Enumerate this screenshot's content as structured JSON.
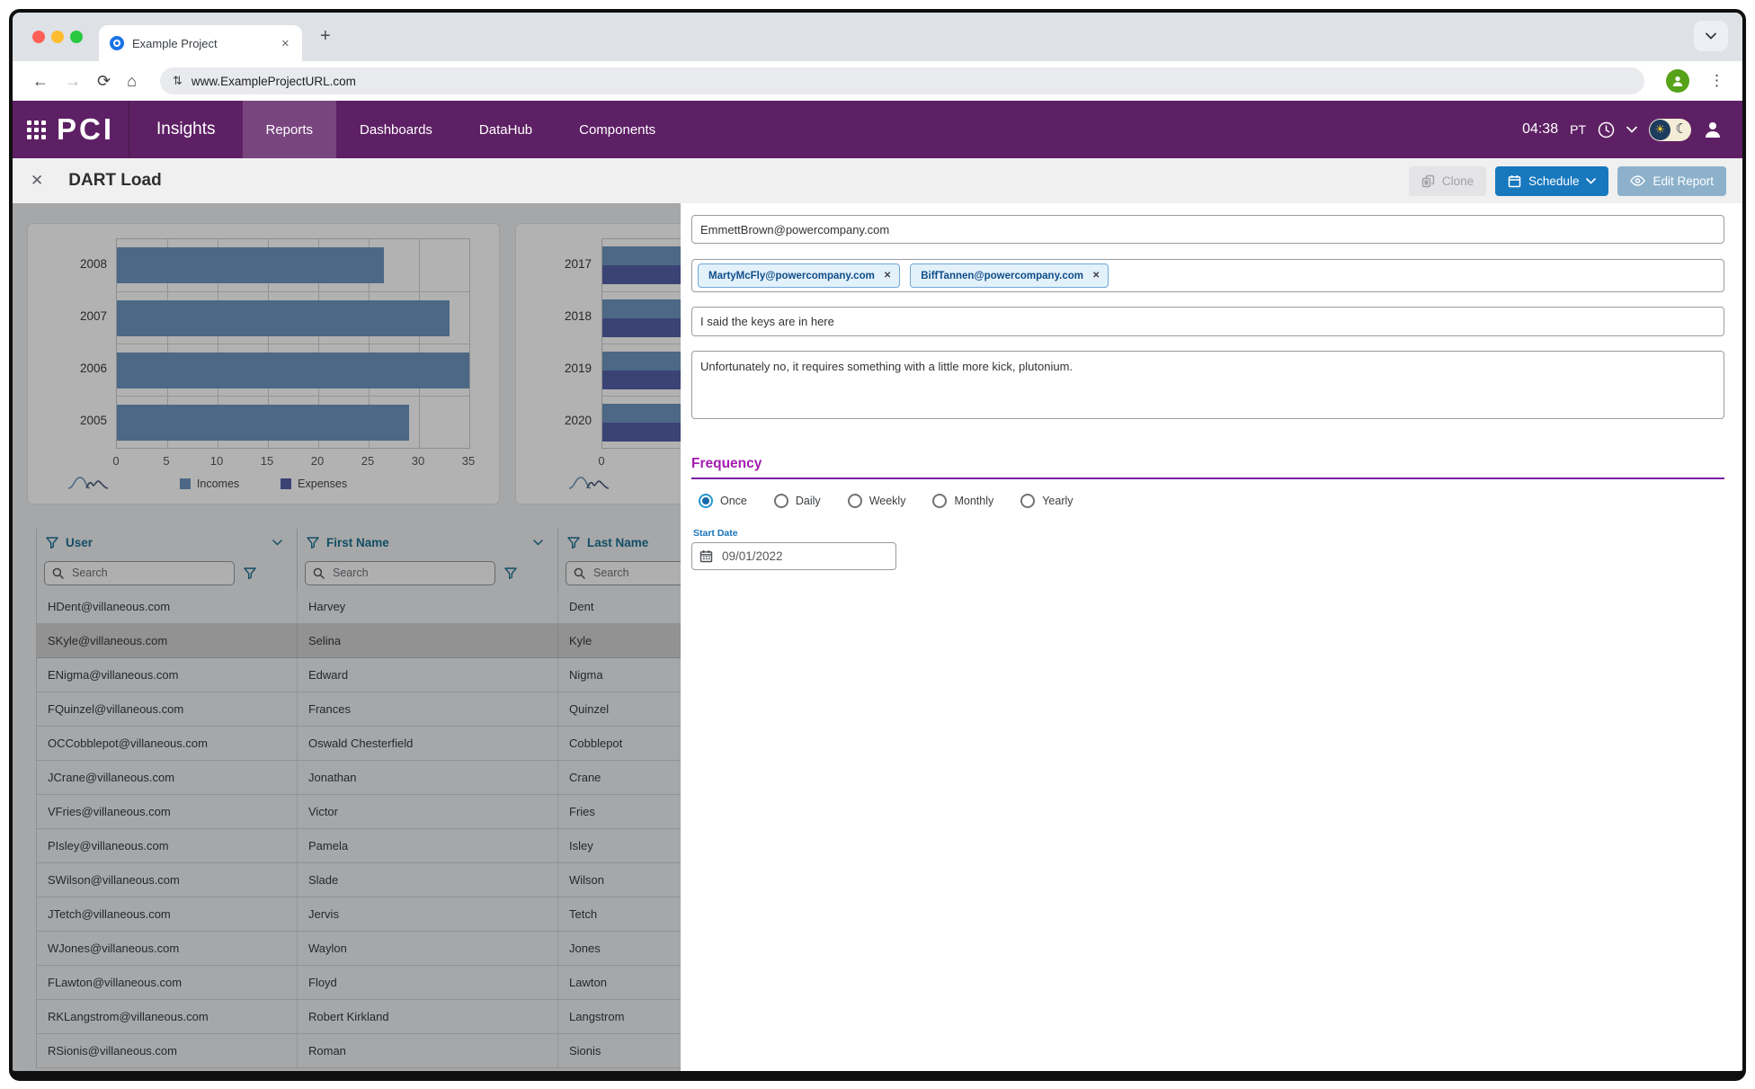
{
  "browser": {
    "tab_title": "Example Project",
    "url": "www.ExampleProjectURL.com"
  },
  "nav": {
    "brand": "PCI",
    "section": "Insights",
    "items": [
      {
        "label": "Reports",
        "active": true
      },
      {
        "label": "Dashboards",
        "active": false
      },
      {
        "label": "DataHub",
        "active": false
      },
      {
        "label": "Components",
        "active": false
      }
    ],
    "time": "04:38",
    "timezone": "PT"
  },
  "report_header": {
    "title": "DART Load",
    "buttons": {
      "clone": "Clone",
      "schedule": "Schedule",
      "edit": "Edit Report"
    }
  },
  "schedule_panel": {
    "to_value": "EmmettBrown@powercompany.com",
    "cc_chips": [
      "MartyMcFly@powercompany.com",
      "BiffTannen@powercompany.com"
    ],
    "subject_value": "I said the keys are in here",
    "message_value": "Unfortunately no, it requires something with a little more kick, plutonium.",
    "frequency": {
      "label": "Frequency",
      "options": [
        "Once",
        "Daily",
        "Weekly",
        "Monthly",
        "Yearly"
      ],
      "selected": "Once"
    },
    "start_date": {
      "label": "Start Date",
      "value": "09/01/2022"
    }
  },
  "chart_data": [
    {
      "type": "bar",
      "orientation": "horizontal",
      "categories": [
        "2008",
        "2007",
        "2006",
        "2005"
      ],
      "series": [
        {
          "name": "Incomes",
          "values": [
            26.5,
            33,
            35,
            29
          ]
        }
      ],
      "legend": [
        "Incomes",
        "Expenses"
      ],
      "colors": {
        "Incomes": "#6d96bf",
        "Expenses": "#5561a8"
      },
      "xlim": [
        0,
        35
      ],
      "xticks": [
        0,
        5,
        10,
        15,
        20,
        25,
        30,
        35
      ],
      "grid": true,
      "legend_position": "bottom"
    },
    {
      "type": "bar",
      "orientation": "horizontal",
      "categories": [
        "2017",
        "2018",
        "2019",
        "2020"
      ],
      "series": [
        {
          "name": "Incomes"
        },
        {
          "name": "Expenses"
        }
      ],
      "colors": {
        "Incomes": "#6d96bf",
        "Expenses": "#5561a8"
      },
      "xticks": [
        0
      ],
      "note": "chart partially hidden behind schedule panel; bar lengths truncated at panel edge"
    }
  ],
  "table": {
    "columns": [
      "User",
      "First Name",
      "Last Name"
    ],
    "search_placeholder": "Search",
    "selected_row_index": 1,
    "rows": [
      [
        "HDent@villaneous.com",
        "Harvey",
        "Dent"
      ],
      [
        "SKyle@villaneous.com",
        "Selina",
        "Kyle"
      ],
      [
        "ENigma@villaneous.com",
        "Edward",
        "Nigma"
      ],
      [
        "FQuinzel@villaneous.com",
        "Frances",
        "Quinzel"
      ],
      [
        "OCCobblepot@villaneous.com",
        "Oswald Chesterfield",
        "Cobblepot"
      ],
      [
        "JCrane@villaneous.com",
        "Jonathan",
        "Crane"
      ],
      [
        "VFries@villaneous.com",
        "Victor",
        "Fries"
      ],
      [
        "PIsley@villaneous.com",
        "Pamela",
        "Isley"
      ],
      [
        "SWilson@villaneous.com",
        "Slade",
        "Wilson"
      ],
      [
        "JTetch@villaneous.com",
        "Jervis",
        "Tetch"
      ],
      [
        "WJones@villaneous.com",
        "Waylon",
        "Jones"
      ],
      [
        "FLawton@villaneous.com",
        "Floyd",
        "Lawton"
      ],
      [
        "RKLangstrom@villaneous.com",
        "Robert Kirkland",
        "Langstrom"
      ],
      [
        "RSionis@villaneous.com",
        "Roman",
        "Sionis"
      ]
    ]
  },
  "colors": {
    "nav_purple": "#5e2065",
    "active_tab_overlay": "rgba(255,255,255,0.17)",
    "frequency_purple": "#a21caf",
    "frequency_rule_purple": "#7b1fa2",
    "primary_blue": "#1878be",
    "muted_edit_blue": "#8db1cb",
    "table_header_teal": "#1b7092",
    "chip_bg": "#e3f1fa",
    "chip_border": "#6fa8d8",
    "chip_text": "#0f4e8a",
    "start_date_blue": "#1a73b8",
    "income_bar": "#6d96bf",
    "expense_bar": "#5561a8"
  }
}
